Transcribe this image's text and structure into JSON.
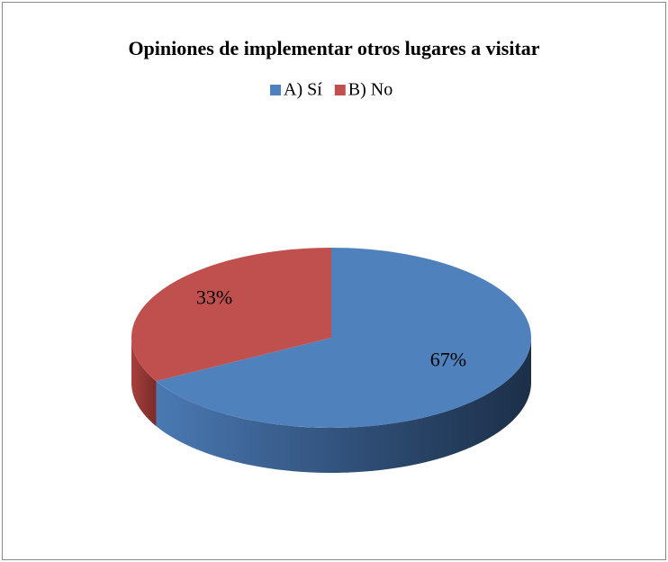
{
  "chart_data": {
    "type": "pie",
    "title": "Opiniones de implementar otros lugares a visitar",
    "categories": [
      "A) Sí",
      "B) No"
    ],
    "values": [
      67,
      33
    ],
    "value_labels": [
      "67%",
      "33%"
    ],
    "colors": [
      "#4f81bd",
      "#c0504d"
    ],
    "legend": "top"
  }
}
